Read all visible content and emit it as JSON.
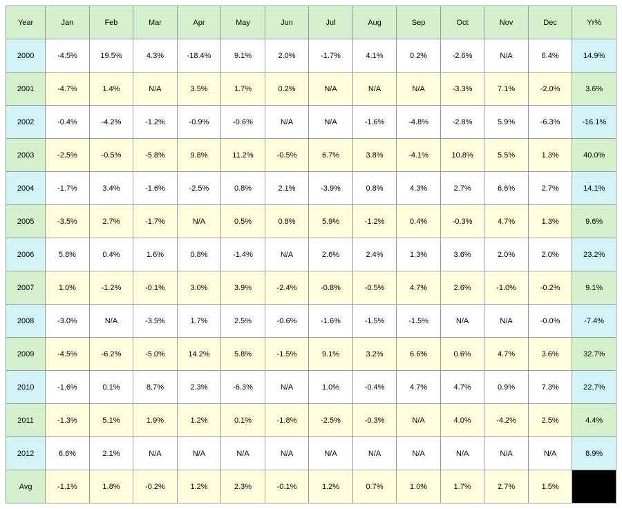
{
  "table": {
    "columns": [
      "Year",
      "Jan",
      "Feb",
      "Mar",
      "Apr",
      "May",
      "Jun",
      "Jul",
      "Aug",
      "Sep",
      "Oct",
      "Nov",
      "Dec",
      "Yr%"
    ],
    "header_bg": "#d5f0cc",
    "year_col_bg_even": "#d3f3f7",
    "year_col_bg_odd": "#d5f0cc",
    "row_bg_even": "#ffffff",
    "row_bg_odd": "#ffffe0",
    "yr_col_bg_even": "#d3f3f7",
    "yr_col_bg_odd": "#d5f0cc",
    "avg_label_bg": "#d5f0cc",
    "avg_row_bg": "#ffffe0",
    "avg_yr_bg": "#000000",
    "border_color": "#999999",
    "font_size": 11,
    "rows": [
      {
        "year": "2000",
        "vals": [
          "-4.5%",
          "19.5%",
          "4.3%",
          "-18.4%",
          "9.1%",
          "2.0%",
          "-1.7%",
          "4.1%",
          "0.2%",
          "-2.6%",
          "N/A",
          "6.4%"
        ],
        "yr": "14.9%"
      },
      {
        "year": "2001",
        "vals": [
          "-4.7%",
          "1.4%",
          "N/A",
          "3.5%",
          "1.7%",
          "0.2%",
          "N/A",
          "N/A",
          "N/A",
          "-3.3%",
          "7.1%",
          "-2.0%"
        ],
        "yr": "3.6%"
      },
      {
        "year": "2002",
        "vals": [
          "-0.4%",
          "-4.2%",
          "-1.2%",
          "-0.9%",
          "-0.6%",
          "N/A",
          "N/A",
          "-1.6%",
          "-4.8%",
          "-2.8%",
          "5.9%",
          "-6.3%"
        ],
        "yr": "-16.1%"
      },
      {
        "year": "2003",
        "vals": [
          "-2.5%",
          "-0.5%",
          "-5.8%",
          "9.8%",
          "11.2%",
          "-0.5%",
          "6.7%",
          "3.8%",
          "-4.1%",
          "10.8%",
          "5.5%",
          "1.3%"
        ],
        "yr": "40.0%"
      },
      {
        "year": "2004",
        "vals": [
          "-1.7%",
          "3.4%",
          "-1.6%",
          "-2.5%",
          "0.8%",
          "2.1%",
          "-3.9%",
          "0.8%",
          "4.3%",
          "2.7%",
          "6.6%",
          "2.7%"
        ],
        "yr": "14.1%"
      },
      {
        "year": "2005",
        "vals": [
          "-3.5%",
          "2.7%",
          "-1.7%",
          "N/A",
          "0.5%",
          "0.8%",
          "5.9%",
          "-1.2%",
          "0.4%",
          "-0.3%",
          "4.7%",
          "1.3%"
        ],
        "yr": "9.6%"
      },
      {
        "year": "2006",
        "vals": [
          "5.8%",
          "0.4%",
          "1.6%",
          "0.8%",
          "-1.4%",
          "N/A",
          "2.6%",
          "2.4%",
          "1.3%",
          "3.6%",
          "2.0%",
          "2.0%"
        ],
        "yr": "23.2%"
      },
      {
        "year": "2007",
        "vals": [
          "1.0%",
          "-1.2%",
          "-0.1%",
          "3.0%",
          "3.9%",
          "-2.4%",
          "-0.8%",
          "-0.5%",
          "4.7%",
          "2.6%",
          "-1.0%",
          "-0.2%"
        ],
        "yr": "9.1%"
      },
      {
        "year": "2008",
        "vals": [
          "-3.0%",
          "N/A",
          "-3.5%",
          "1.7%",
          "2.5%",
          "-0.6%",
          "-1.6%",
          "-1.5%",
          "-1.5%",
          "N/A",
          "N/A",
          "-0.0%"
        ],
        "yr": "-7.4%"
      },
      {
        "year": "2009",
        "vals": [
          "-4.5%",
          "-6.2%",
          "-5.0%",
          "14.2%",
          "5.8%",
          "-1.5%",
          "9.1%",
          "3.2%",
          "6.6%",
          "0.6%",
          "4.7%",
          "3.6%"
        ],
        "yr": "32.7%"
      },
      {
        "year": "2010",
        "vals": [
          "-1.6%",
          "0.1%",
          "8.7%",
          "2.3%",
          "-6.3%",
          "N/A",
          "1.0%",
          "-0.4%",
          "4.7%",
          "4.7%",
          "0.9%",
          "7.3%"
        ],
        "yr": "22.7%"
      },
      {
        "year": "2011",
        "vals": [
          "-1.3%",
          "5.1%",
          "1.9%",
          "1.2%",
          "0.1%",
          "-1.8%",
          "-2.5%",
          "-0.3%",
          "N/A",
          "4.0%",
          "-4.2%",
          "2.5%"
        ],
        "yr": "4.4%"
      },
      {
        "year": "2012",
        "vals": [
          "6.6%",
          "2.1%",
          "N/A",
          "N/A",
          "N/A",
          "N/A",
          "N/A",
          "N/A",
          "N/A",
          "N/A",
          "N/A",
          "N/A"
        ],
        "yr": "8.9%"
      }
    ],
    "avg": {
      "label": "Avg",
      "vals": [
        "-1.1%",
        "1.8%",
        "-0.2%",
        "1.2%",
        "2.3%",
        "-0.1%",
        "1.2%",
        "0.7%",
        "1.0%",
        "1.7%",
        "2.7%",
        "1.5%"
      ],
      "yr": ""
    }
  }
}
